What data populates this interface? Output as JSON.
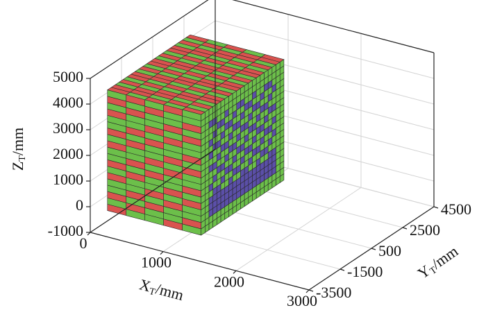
{
  "chart_data": {
    "type": "voxel3d",
    "xlabel": {
      "symbol": "X",
      "subscript": "T",
      "unit": "/mm"
    },
    "ylabel": {
      "symbol": "Y",
      "subscript": "T",
      "unit": "/mm"
    },
    "zlabel": {
      "symbol": "Z",
      "subscript": "T",
      "unit": "/mm"
    },
    "xlim": [
      0,
      3000
    ],
    "xticks": [
      0,
      1000,
      2000,
      3000
    ],
    "ylim": [
      -3500,
      4500
    ],
    "yticks": [
      -3500,
      -1500,
      500,
      2500,
      4500
    ],
    "zlim": [
      -1000,
      5000
    ],
    "zticks": [
      -1000,
      0,
      1000,
      2000,
      3000,
      4000,
      5000
    ],
    "grid": true,
    "colors": {
      "shell": "#6cbf4a",
      "surface": "#d9534f",
      "interior": "#5b4fa8"
    }
  }
}
